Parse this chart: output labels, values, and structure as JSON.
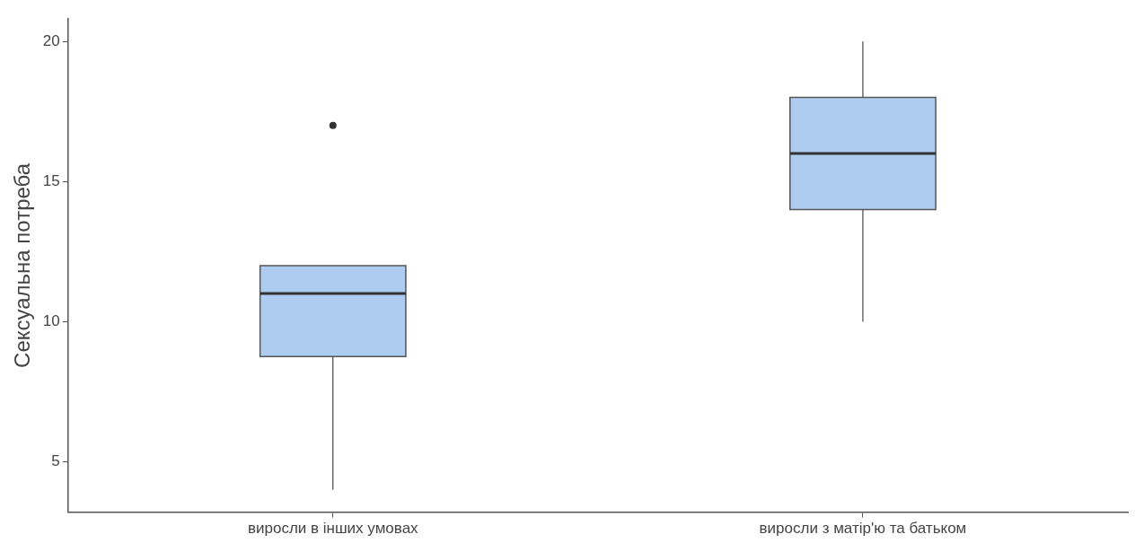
{
  "chart_data": {
    "type": "box",
    "ylabel": "Сексуальна потреба",
    "categories": [
      "виросли в інших умовах",
      "виросли з матір'ю та батьком"
    ],
    "boxes": [
      {
        "low": 4,
        "q1": 8.75,
        "median": 11,
        "q3": 12,
        "high": 12,
        "outliers": [
          17
        ]
      },
      {
        "low": 10,
        "q1": 14,
        "median": 16,
        "q3": 18,
        "high": 20
      }
    ],
    "color": "#aecbf0",
    "ylim": [
      3.2,
      20.8
    ],
    "yticks": [
      5,
      10,
      15,
      20
    ]
  }
}
